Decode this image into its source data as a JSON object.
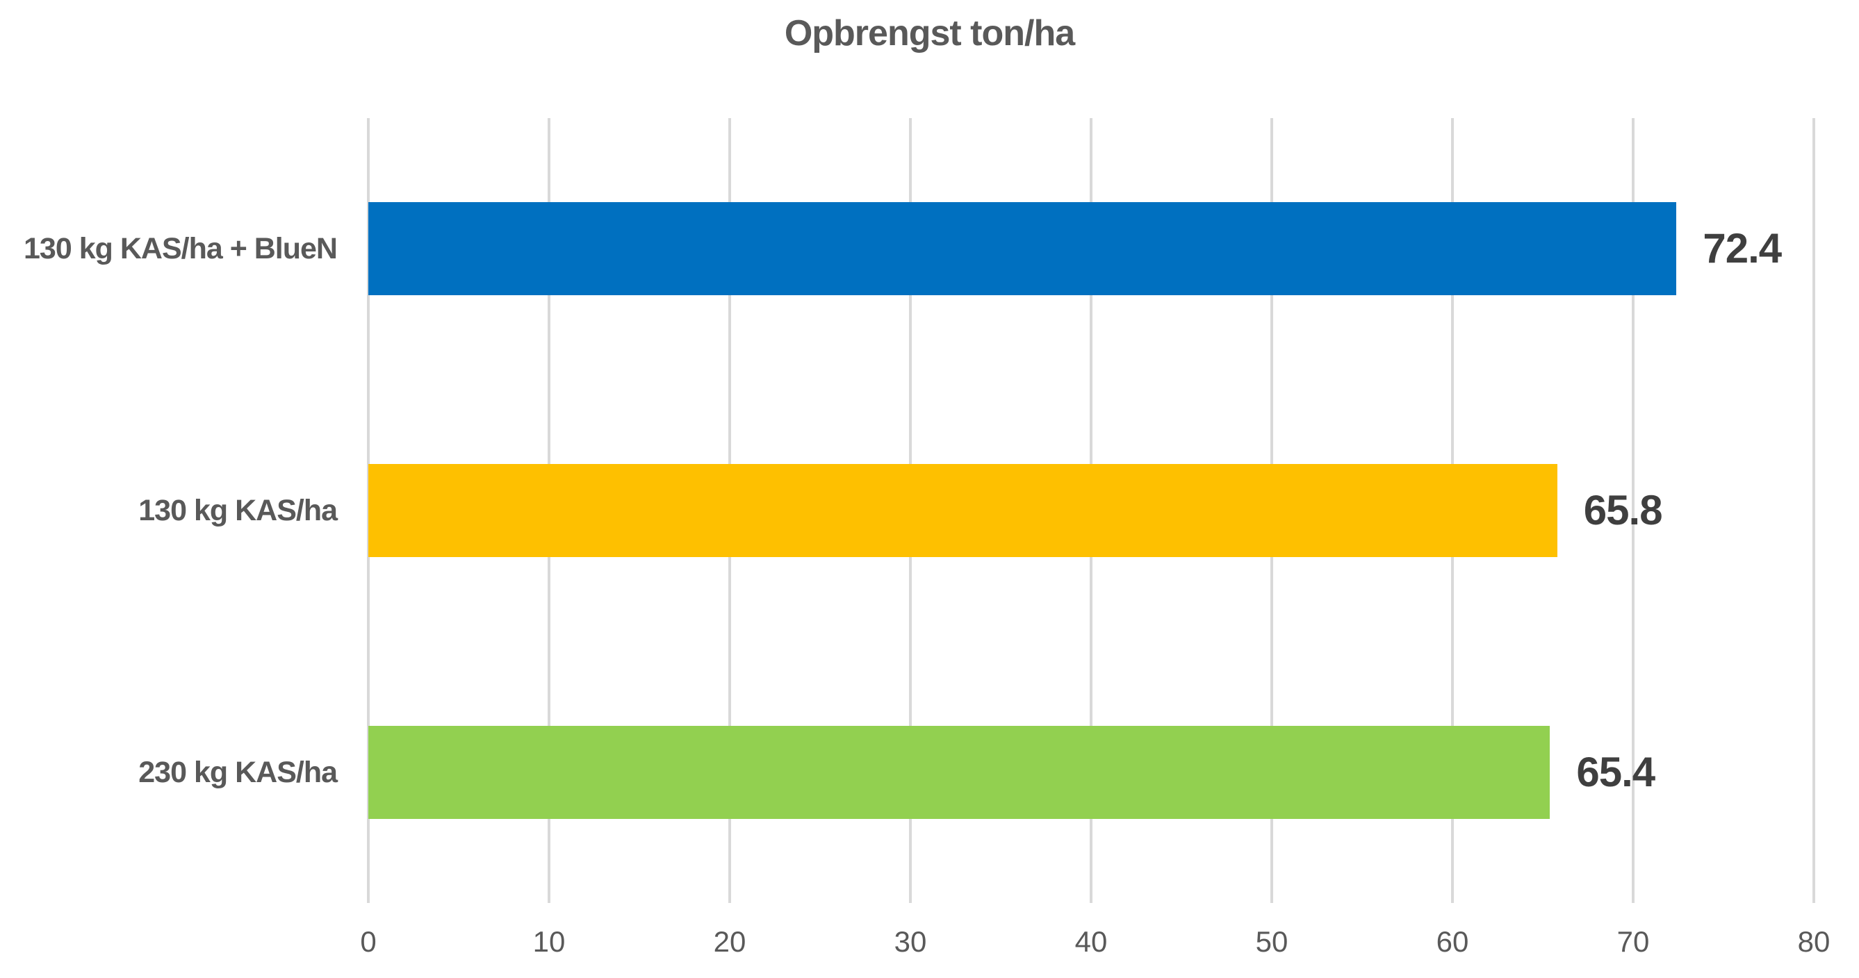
{
  "chart_data": {
    "type": "bar",
    "orientation": "horizontal",
    "title": "Opbrengst ton/ha",
    "categories": [
      "130 kg KAS/ha + BlueN",
      "130 kg KAS/ha",
      "230 kg KAS/ha"
    ],
    "values": [
      72.4,
      65.8,
      65.4
    ],
    "data_labels": [
      "72.4",
      "65.8",
      "65.4"
    ],
    "bar_colors": [
      "#0070c0",
      "#fec000",
      "#92d050"
    ],
    "xlabel": "",
    "ylabel": "",
    "xlim": [
      0,
      80
    ],
    "x_ticks": [
      0,
      10,
      20,
      30,
      40,
      50,
      60,
      70,
      80
    ],
    "grid": true,
    "legend": "none",
    "gridline_color": "#d9d9d9",
    "title_color": "#595959",
    "category_label_color": "#595959",
    "value_label_color": "#3f3f3f",
    "tick_label_color": "#595959"
  }
}
